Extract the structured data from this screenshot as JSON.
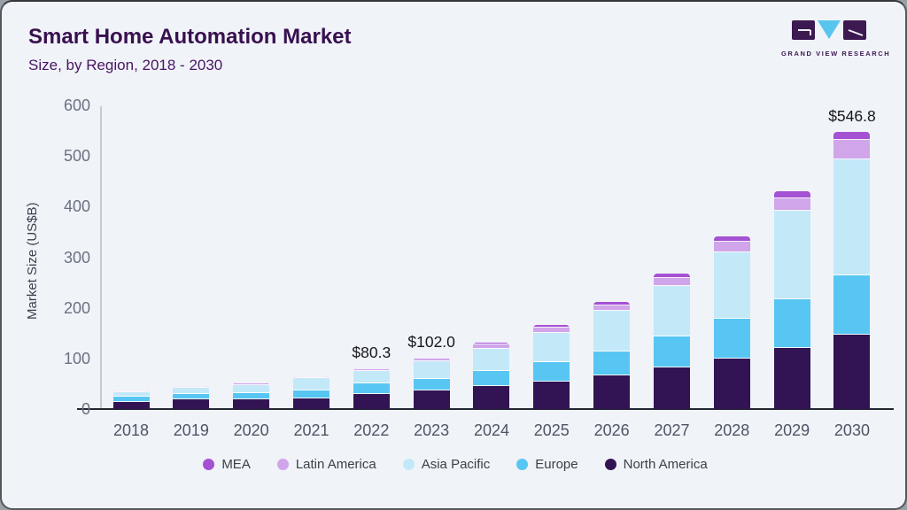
{
  "header": {
    "title": "Smart Home Automation Market",
    "subtitle": "Size, by Region, 2018 - 2030",
    "brand_name": "GRAND VIEW RESEARCH"
  },
  "colors": {
    "background": "#f0f3f8",
    "title": "#38104f",
    "axis_line": "#c6cbd3",
    "baseline": "#23272f",
    "logo_purple": "#3d1952",
    "logo_blue": "#58c5ef"
  },
  "chart_data": {
    "type": "bar",
    "stacked": true,
    "title": "Smart Home Automation Market Size, by Region, 2018 - 2030",
    "ylabel": "Market Size (US$B)",
    "ylim": [
      0,
      600
    ],
    "yticks": [
      0,
      100,
      200,
      300,
      400,
      500,
      600
    ],
    "grid": false,
    "legend_position": "bottom",
    "categories": [
      "2018",
      "2019",
      "2020",
      "2021",
      "2022",
      "2023",
      "2024",
      "2025",
      "2026",
      "2027",
      "2028",
      "2029",
      "2030"
    ],
    "series": [
      {
        "name": "North America",
        "color": "#321353",
        "values": [
          15,
          19,
          20,
          22,
          29,
          36,
          46,
          55,
          66,
          83,
          100,
          121,
          147
        ]
      },
      {
        "name": "Europe",
        "color": "#58c6f2",
        "values": [
          11,
          12,
          13,
          15.5,
          21.5,
          23.5,
          29,
          38,
          48,
          60,
          78,
          95,
          117
        ]
      },
      {
        "name": "Asia Pacific",
        "color": "#c3e9f9",
        "values": [
          9.5,
          11.5,
          16,
          24,
          24,
          35,
          44,
          57,
          80,
          100,
          132,
          175,
          230
        ]
      },
      {
        "name": "Latin America",
        "color": "#d0a5ea",
        "values": [
          1.5,
          1.8,
          2.2,
          2,
          4,
          5.5,
          8,
          11,
          11,
          16,
          20,
          25,
          38
        ]
      },
      {
        "name": "MEA",
        "color": "#a551d3",
        "values": [
          0.5,
          0.7,
          0.8,
          1,
          1.8,
          2,
          3.5,
          4.5,
          6,
          9,
          11,
          14,
          14.8
        ]
      }
    ],
    "totals": [
      37.5,
      45,
      52,
      64.5,
      80.3,
      102,
      130.5,
      165.5,
      211,
      268,
      341,
      430,
      546.8
    ],
    "annotations": [
      {
        "category": "2022",
        "text": "$80.3"
      },
      {
        "category": "2023",
        "text": "$102.0"
      },
      {
        "category": "2030",
        "text": "$546.8"
      }
    ],
    "legend_order": [
      "MEA",
      "Latin America",
      "Asia Pacific",
      "Europe",
      "North America"
    ]
  }
}
